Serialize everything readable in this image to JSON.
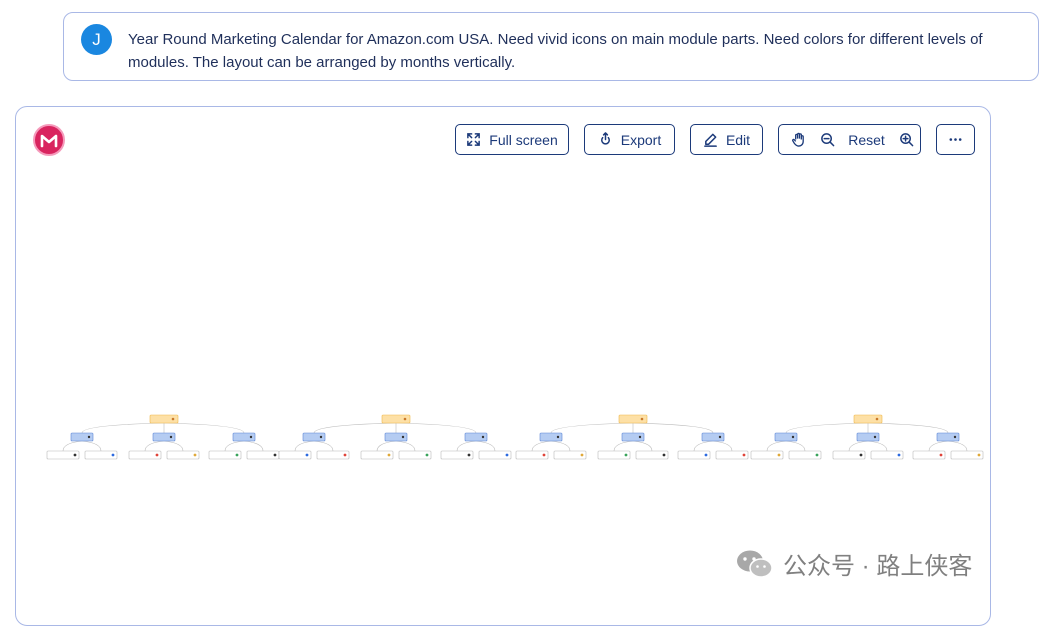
{
  "prompt": {
    "avatar_letter": "J",
    "text": "Year Round Marketing Calendar for Amazon.com USA. Need vivid icons on main module parts. Need colors for different levels of modules. The layout can be arranged by months vertically."
  },
  "toolbar": {
    "fullscreen_label": "Full screen",
    "export_label": "Export",
    "edit_label": "Edit",
    "reset_label": "Reset"
  },
  "icons": {
    "logo": "mapify-logo-icon",
    "fullscreen": "expand-icon",
    "export": "export-icon",
    "edit": "pencil-icon",
    "pan": "hand-icon",
    "zoom_out": "zoom-out-icon",
    "zoom_in": "zoom-in-icon",
    "more": "more-dots-icon",
    "watermark": "wechat-icon"
  },
  "colors": {
    "root_fill": "#fde0a6",
    "root_stroke": "#f0b74a",
    "branch_fill": "#b5ccf2",
    "branch_stroke": "#5b86d6",
    "leaf_fill": "#ffffff",
    "leaf_stroke": "#b8b8b8",
    "accent": "#1c3a7a"
  },
  "watermark": {
    "text": "公众号 · 路上侠客"
  }
}
